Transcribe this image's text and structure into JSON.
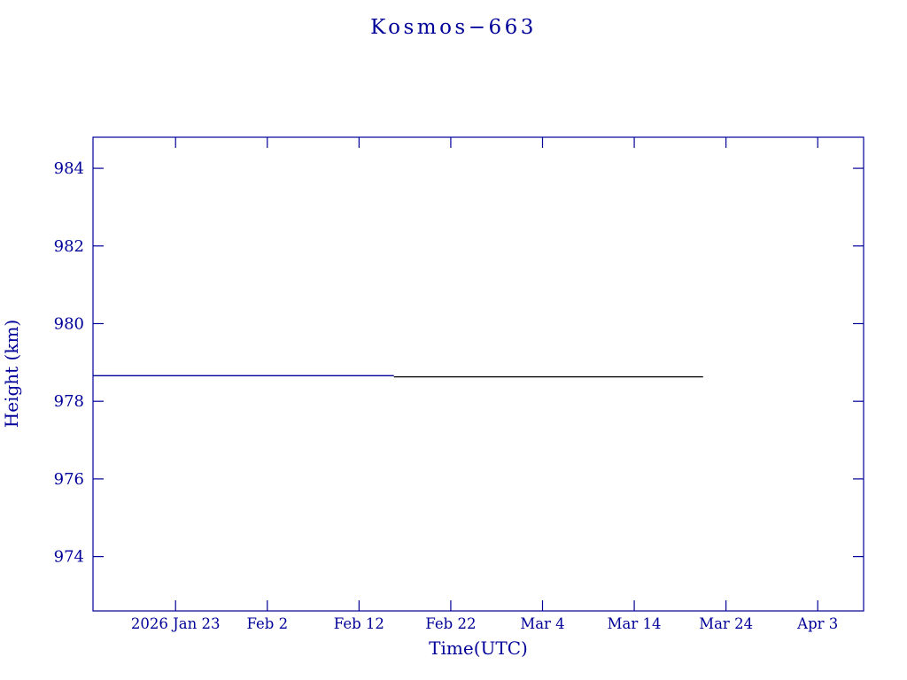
{
  "chart_data": {
    "type": "line",
    "title": "Kosmos−663",
    "xlabel": "Time(UTC)",
    "ylabel": "Height (km)",
    "axis_color": "#000099",
    "background": "#ffffff",
    "grid": false,
    "legend": "none",
    "x_domain_days": [
      0,
      84
    ],
    "x_origin_note": "day 0 corresponds to plot left edge; ticks every 10 days",
    "x_ticks": [
      {
        "pos": 9,
        "label": "2026 Jan 23"
      },
      {
        "pos": 19,
        "label": "Feb 2"
      },
      {
        "pos": 29,
        "label": "Feb 12"
      },
      {
        "pos": 39,
        "label": "Feb 22"
      },
      {
        "pos": 49,
        "label": "Mar 4"
      },
      {
        "pos": 59,
        "label": "Mar 14"
      },
      {
        "pos": 69,
        "label": "Mar 24"
      },
      {
        "pos": 79,
        "label": "Apr 3"
      }
    ],
    "ylim": [
      972.6,
      984.8
    ],
    "y_ticks": [
      974,
      976,
      978,
      980,
      982,
      984
    ],
    "series": [
      {
        "name": "height-history-blue",
        "color": "#000099",
        "points": [
          [
            0,
            978.66
          ],
          [
            32.8,
            978.66
          ]
        ]
      },
      {
        "name": "height-projection-black",
        "color": "#000000",
        "points": [
          [
            32.8,
            978.63
          ],
          [
            66.5,
            978.63
          ]
        ]
      }
    ]
  }
}
